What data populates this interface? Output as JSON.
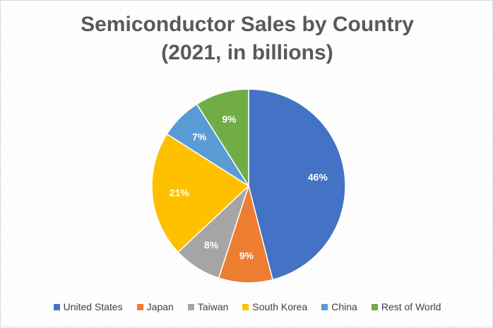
{
  "chart_data": {
    "type": "pie",
    "title": "Semiconductor Sales by Country",
    "subtitle": "(2021, in billions)",
    "categories": [
      "United States",
      "Japan",
      "Taiwan",
      "South Korea",
      "China",
      "Rest of World"
    ],
    "values": [
      46,
      9,
      8,
      21,
      7,
      9
    ],
    "data_labels": [
      "46%",
      "9%",
      "8%",
      "21%",
      "7%",
      "9%"
    ],
    "colors": [
      "#4472C4",
      "#ED7D31",
      "#A5A5A5",
      "#FFC000",
      "#5B9BD5",
      "#70AD47"
    ],
    "start_angle_deg": 0,
    "direction": "clockwise",
    "legend_position": "bottom"
  }
}
